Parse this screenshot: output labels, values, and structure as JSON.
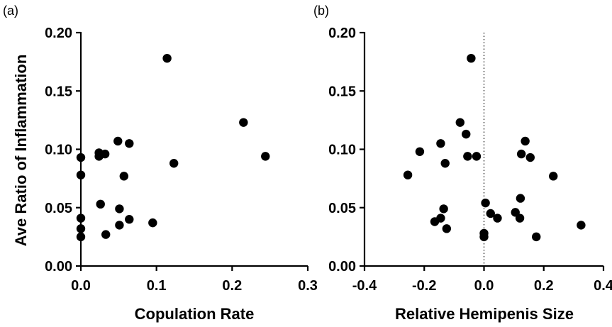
{
  "panels": [
    {
      "label": "(a)"
    },
    {
      "label": "(b)"
    }
  ],
  "chart_data": [
    {
      "type": "scatter",
      "panel": "(a)",
      "xlabel": "Copulation Rate",
      "ylabel": "Ave Ratio of Inflammation",
      "xlim": [
        0.0,
        0.3
      ],
      "ylim": [
        0.0,
        0.2
      ],
      "x_ticks": [
        "0.0",
        "0.1",
        "0.2",
        "0.3"
      ],
      "y_ticks": [
        "0.00",
        "0.05",
        "0.10",
        "0.15",
        "0.20"
      ],
      "grid": false,
      "marker_color": "#000000",
      "points": [
        {
          "x": 0.0,
          "y": 0.093
        },
        {
          "x": 0.0,
          "y": 0.078
        },
        {
          "x": 0.0,
          "y": 0.041
        },
        {
          "x": 0.0,
          "y": 0.032
        },
        {
          "x": 0.0,
          "y": 0.025
        },
        {
          "x": 0.024,
          "y": 0.097
        },
        {
          "x": 0.024,
          "y": 0.094
        },
        {
          "x": 0.026,
          "y": 0.053
        },
        {
          "x": 0.032,
          "y": 0.096
        },
        {
          "x": 0.033,
          "y": 0.027
        },
        {
          "x": 0.049,
          "y": 0.107
        },
        {
          "x": 0.051,
          "y": 0.049
        },
        {
          "x": 0.051,
          "y": 0.035
        },
        {
          "x": 0.057,
          "y": 0.077
        },
        {
          "x": 0.064,
          "y": 0.105
        },
        {
          "x": 0.064,
          "y": 0.04
        },
        {
          "x": 0.095,
          "y": 0.037
        },
        {
          "x": 0.114,
          "y": 0.178
        },
        {
          "x": 0.123,
          "y": 0.088
        },
        {
          "x": 0.215,
          "y": 0.123
        },
        {
          "x": 0.244,
          "y": 0.094
        }
      ]
    },
    {
      "type": "scatter",
      "panel": "(b)",
      "xlabel": "Relative Hemipenis Size",
      "ylabel": "",
      "xlim": [
        -0.4,
        0.4
      ],
      "ylim": [
        0.0,
        0.2
      ],
      "x_ticks": [
        "-0.4",
        "-0.2",
        "0.0",
        "0.2",
        "0.4"
      ],
      "y_ticks": [
        "0.00",
        "0.05",
        "0.10",
        "0.15",
        "0.20"
      ],
      "grid": false,
      "reference_line": {
        "x": 0.0,
        "style": "dotted"
      },
      "marker_color": "#000000",
      "points": [
        {
          "x": -0.043,
          "y": 0.178
        },
        {
          "x": -0.08,
          "y": 0.123
        },
        {
          "x": -0.06,
          "y": 0.113
        },
        {
          "x": -0.215,
          "y": 0.098
        },
        {
          "x": -0.145,
          "y": 0.105
        },
        {
          "x": -0.13,
          "y": 0.088
        },
        {
          "x": -0.255,
          "y": 0.078
        },
        {
          "x": -0.055,
          "y": 0.094
        },
        {
          "x": -0.025,
          "y": 0.094
        },
        {
          "x": 0.138,
          "y": 0.107
        },
        {
          "x": 0.125,
          "y": 0.096
        },
        {
          "x": 0.155,
          "y": 0.093
        },
        {
          "x": 0.232,
          "y": 0.077
        },
        {
          "x": 0.122,
          "y": 0.058
        },
        {
          "x": -0.135,
          "y": 0.049
        },
        {
          "x": 0.005,
          "y": 0.054
        },
        {
          "x": -0.165,
          "y": 0.038
        },
        {
          "x": -0.145,
          "y": 0.041
        },
        {
          "x": -0.125,
          "y": 0.032
        },
        {
          "x": 0.022,
          "y": 0.045
        },
        {
          "x": 0.045,
          "y": 0.041
        },
        {
          "x": 0.105,
          "y": 0.046
        },
        {
          "x": 0.12,
          "y": 0.041
        },
        {
          "x": 0.0,
          "y": 0.028
        },
        {
          "x": 0.0,
          "y": 0.025
        },
        {
          "x": 0.175,
          "y": 0.025
        },
        {
          "x": 0.325,
          "y": 0.035
        }
      ]
    }
  ]
}
